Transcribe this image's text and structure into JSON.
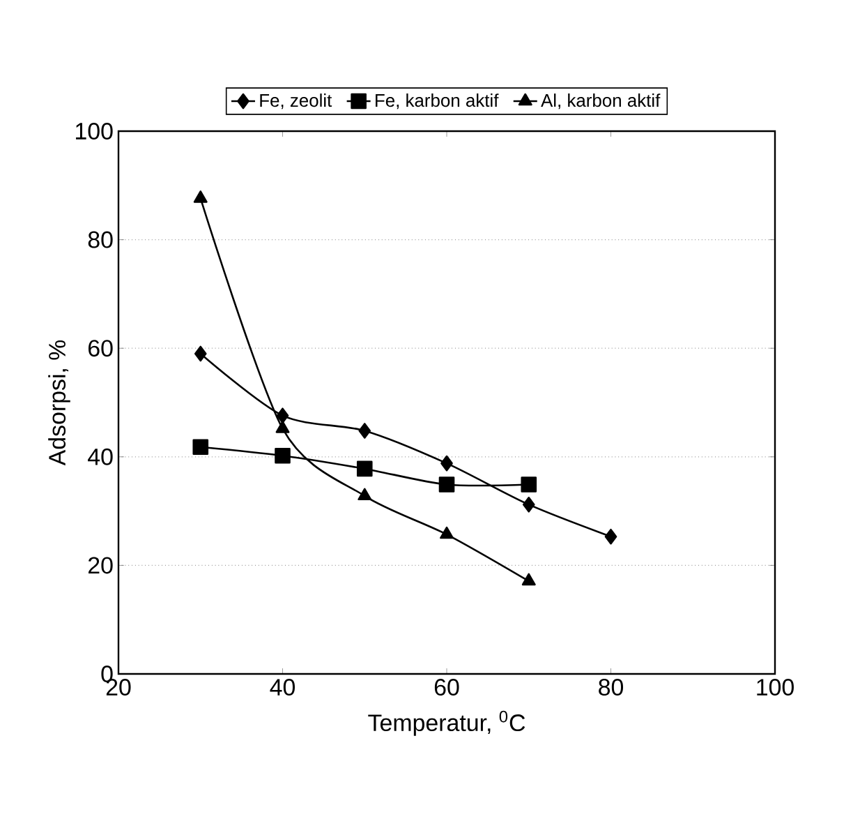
{
  "chart_data": {
    "type": "line",
    "xlabel": "Temperatur, $^{0}$C",
    "ylabel": "Adsorpsi, %",
    "xlim": [
      20,
      100
    ],
    "xticks": [
      20,
      40,
      60,
      80,
      100
    ],
    "ylim": [
      0,
      100
    ],
    "yticks": [
      0,
      20,
      40,
      60,
      80,
      100
    ],
    "grid": "y",
    "legend": "top",
    "line_style": "solid",
    "x": [
      30,
      40,
      50,
      60,
      70,
      80
    ],
    "series": [
      {
        "name": "Fe, zeolit",
        "color": "#000000",
        "marker": "diamond",
        "values": [
          59,
          47.6,
          44.8,
          38.8,
          31.2,
          25.3
        ]
      },
      {
        "name": "Fe, karbon aktif",
        "color": "#000000",
        "marker": "square",
        "values": [
          41.8,
          40.2,
          37.8,
          34.9,
          34.9,
          null
        ]
      },
      {
        "name": "Al, karbon aktif",
        "color": "#000000",
        "marker": "triangle",
        "values": [
          87.6,
          45.2,
          32.8,
          25.7,
          17.1,
          null
        ]
      }
    ]
  }
}
